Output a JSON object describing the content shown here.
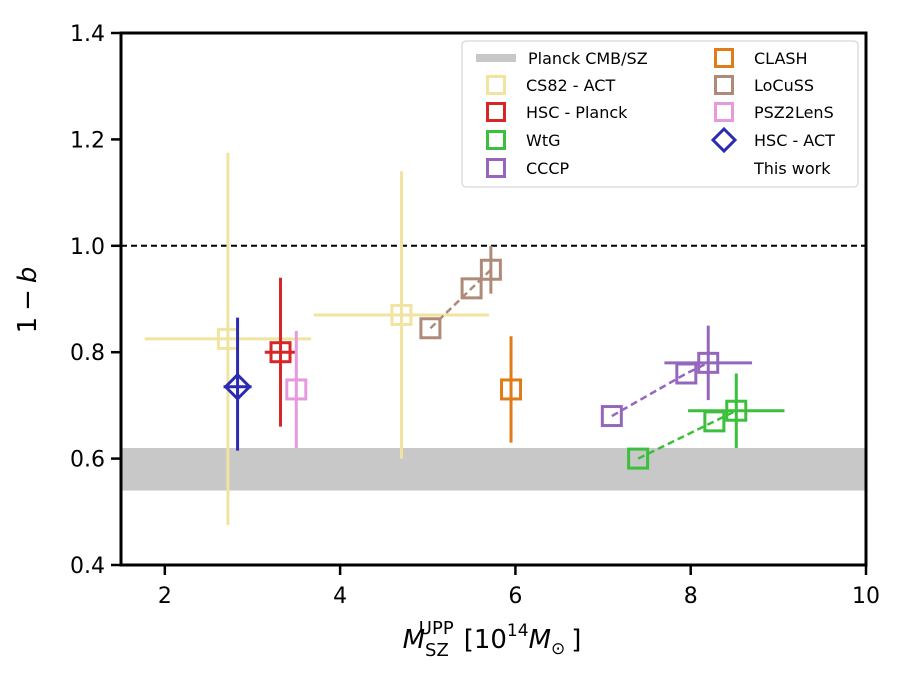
{
  "chart_data": {
    "type": "scatter",
    "xlabel": "M_SZ^UPP [10^14 M_⊙]",
    "xlabel_parts": {
      "base": "M",
      "sub": "SZ",
      "sup": "UPP",
      "units_open": "[10",
      "units_exp": "14",
      "units_m": "M",
      "units_sub": "⊙",
      "units_close": "]"
    },
    "ylabel": "1 − b",
    "ylabel_parts": {
      "one": "1",
      "minus": "−",
      "b": "b"
    },
    "xlim": [
      1.5,
      10
    ],
    "ylim": [
      0.4,
      1.4
    ],
    "xticks": [
      2,
      4,
      6,
      8,
      10
    ],
    "yticks": [
      0.4,
      0.6,
      0.8,
      1.0,
      1.2,
      1.4
    ],
    "xtick_labels": [
      "2",
      "4",
      "6",
      "8",
      "10"
    ],
    "ytick_labels": [
      "0.4",
      "0.6",
      "0.8",
      "1.0",
      "1.2",
      "1.4"
    ],
    "reference_line": {
      "y": 1.0,
      "style": "dashed",
      "color": "#000000"
    },
    "band": {
      "name": "Planck CMB/SZ",
      "y0": 0.54,
      "y1": 0.62,
      "color": "#c8c8c8"
    },
    "series": [
      {
        "name": "CS82 - ACT",
        "color": "#f1e3a0",
        "marker": "square",
        "connect": false,
        "points": [
          {
            "x": 2.72,
            "y": 0.825,
            "xerr": [
              0.95,
              0.95
            ],
            "yerr": [
              0.35,
              0.35
            ]
          },
          {
            "x": 4.7,
            "y": 0.87,
            "xerr": [
              1.0,
              1.0
            ],
            "yerr": [
              0.27,
              0.27
            ]
          }
        ]
      },
      {
        "name": "HSC - Planck",
        "color": "#d62728",
        "marker": "square",
        "connect": false,
        "points": [
          {
            "x": 3.32,
            "y": 0.8,
            "xerr": [
              0.18,
              0.18
            ],
            "yerr": [
              0.14,
              0.14
            ]
          }
        ]
      },
      {
        "name": "WtG",
        "color": "#3cbf3c",
        "marker": "square",
        "connect": true,
        "points": [
          {
            "x": 7.4,
            "y": 0.6
          },
          {
            "x": 8.27,
            "y": 0.67
          },
          {
            "x": 8.52,
            "y": 0.69,
            "xerr": [
              0.55,
              0.55
            ],
            "yerr": [
              0.07,
              0.07
            ]
          }
        ]
      },
      {
        "name": "CCCP",
        "color": "#9467bd",
        "marker": "square",
        "connect": true,
        "points": [
          {
            "x": 7.1,
            "y": 0.68
          },
          {
            "x": 7.95,
            "y": 0.76
          },
          {
            "x": 8.2,
            "y": 0.78,
            "xerr": [
              0.5,
              0.5
            ],
            "yerr": [
              0.07,
              0.07
            ]
          }
        ]
      },
      {
        "name": "CLASH",
        "color": "#e07b1a",
        "marker": "square",
        "connect": false,
        "points": [
          {
            "x": 5.95,
            "y": 0.73,
            "yerr": [
              0.1,
              0.1
            ]
          }
        ]
      },
      {
        "name": "LoCuSS",
        "color": "#b08a78",
        "marker": "square",
        "connect": true,
        "points": [
          {
            "x": 5.03,
            "y": 0.845
          },
          {
            "x": 5.5,
            "y": 0.92
          },
          {
            "x": 5.72,
            "y": 0.955,
            "yerr": [
              0.045,
              0.045
            ]
          }
        ]
      },
      {
        "name": "PSZ2LenS",
        "color": "#e899de",
        "marker": "square",
        "connect": false,
        "points": [
          {
            "x": 3.5,
            "y": 0.73,
            "yerr": [
              0.11,
              0.11
            ]
          }
        ]
      },
      {
        "name": "HSC - ACT",
        "sublabel": "This work",
        "color": "#2b2bb0",
        "marker": "diamond",
        "connect": false,
        "points": [
          {
            "x": 2.83,
            "y": 0.735,
            "xerr": [
              0.16,
              0.16
            ],
            "yerr": [
              0.12,
              0.13
            ]
          }
        ]
      }
    ],
    "legend": {
      "placement": "top-right",
      "entries_left": [
        "Planck CMB/SZ",
        "CS82 - ACT",
        "HSC - Planck",
        "WtG",
        "CCCP"
      ],
      "entries_right": [
        "CLASH",
        "LoCuSS",
        "PSZ2LenS",
        "HSC - ACT",
        "This work"
      ]
    },
    "grid": false
  }
}
